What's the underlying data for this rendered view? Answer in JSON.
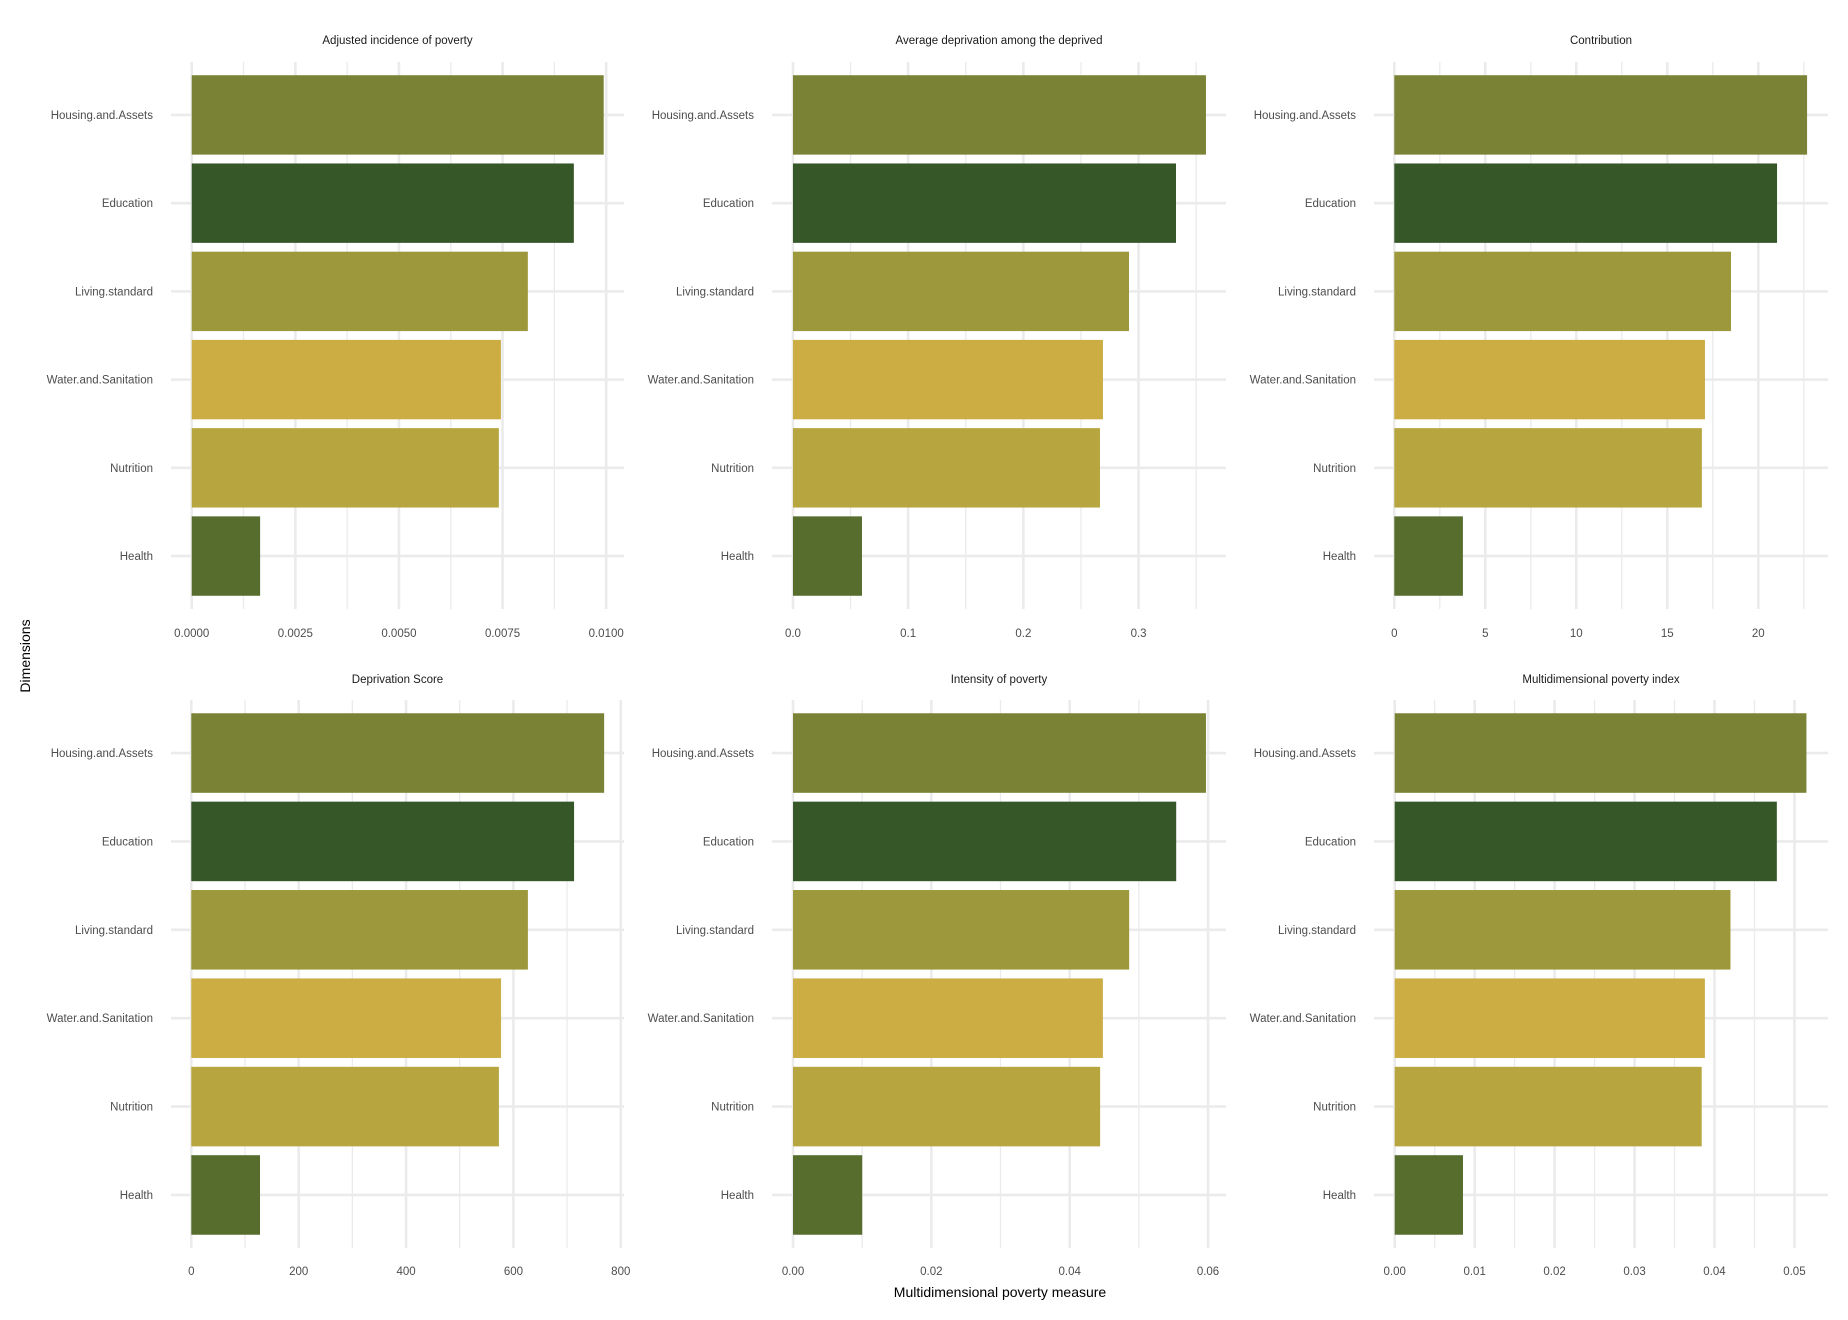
{
  "chart_data": {
    "type": "bar",
    "orientation": "horizontal",
    "xlabel": "Multidimensional poverty measure",
    "ylabel": "Dimensions",
    "grid": true,
    "legend": "none",
    "categories": [
      "Housing.and.Assets",
      "Education",
      "Living.standard",
      "Water.and.Sanitation",
      "Nutrition",
      "Health"
    ],
    "category_colors": {
      "Housing.and.Assets": "#7a8235",
      "Education": "#365829",
      "Living.standard": "#9c983b",
      "Water.and.Sanitation": "#cbad44",
      "Nutrition": "#b7a53f",
      "Health": "#566d2e"
    },
    "panels": [
      {
        "title": "Adjusted incidence of poverty",
        "values": [
          0.00994,
          0.00922,
          0.00811,
          0.00746,
          0.00741,
          0.00165
        ],
        "xlim": [
          -0.0005,
          0.01043
        ],
        "ticks": [
          0,
          0.0025,
          0.005,
          0.0075,
          0.01
        ],
        "tick_labels": [
          "0.0000",
          "0.0025",
          "0.0050",
          "0.0075",
          "0.0100"
        ],
        "minor_ticks": [
          0.00125,
          0.00375,
          0.00625,
          0.00875
        ]
      },
      {
        "title": "Average deprivation among the deprived",
        "values": [
          0.3585,
          0.3325,
          0.2917,
          0.2691,
          0.2665,
          0.0599
        ],
        "xlim": [
          -0.0182,
          0.3759
        ],
        "ticks": [
          0,
          0.1,
          0.2,
          0.3
        ],
        "tick_labels": [
          "0.0",
          "0.1",
          "0.2",
          "0.3"
        ],
        "minor_ticks": [
          0.05,
          0.15,
          0.25,
          0.35
        ]
      },
      {
        "title": "Contribution",
        "values": [
          22.68,
          21.03,
          18.5,
          17.07,
          16.9,
          3.77
        ],
        "xlim": [
          -1.115,
          23.83
        ],
        "ticks": [
          0,
          5,
          10,
          15,
          20
        ],
        "tick_labels": [
          "0",
          "5",
          "10",
          "15",
          "20"
        ],
        "minor_ticks": [
          2.5,
          7.5,
          12.5,
          17.5,
          22.5
        ]
      },
      {
        "title": "Deprivation Score",
        "values": [
          769,
          713,
          627,
          577,
          573,
          128
        ],
        "xlim": [
          -37.8,
          806
        ],
        "ticks": [
          0,
          200,
          400,
          600,
          800
        ],
        "tick_labels": [
          "0",
          "200",
          "400",
          "600",
          "800"
        ],
        "minor_ticks": [
          100,
          300,
          500,
          700
        ]
      },
      {
        "title": "Intensity of poverty",
        "values": [
          0.0597,
          0.0554,
          0.0486,
          0.0448,
          0.0444,
          0.01
        ],
        "xlim": [
          -0.00304,
          0.0626
        ],
        "ticks": [
          0,
          0.02,
          0.04,
          0.06
        ],
        "tick_labels": [
          "0.00",
          "0.02",
          "0.04",
          "0.06"
        ],
        "minor_ticks": [
          0.01,
          0.03,
          0.05
        ]
      },
      {
        "title": "Multidimensional poverty index",
        "values": [
          0.0515,
          0.0478,
          0.042,
          0.0388,
          0.0384,
          0.00854
        ],
        "xlim": [
          -0.00259,
          0.0542
        ],
        "ticks": [
          0,
          0.01,
          0.02,
          0.03,
          0.04,
          0.05
        ],
        "tick_labels": [
          "0.00",
          "0.01",
          "0.02",
          "0.03",
          "0.04",
          "0.05"
        ],
        "minor_ticks": [
          0.005,
          0.015,
          0.025,
          0.035,
          0.045
        ]
      }
    ]
  }
}
